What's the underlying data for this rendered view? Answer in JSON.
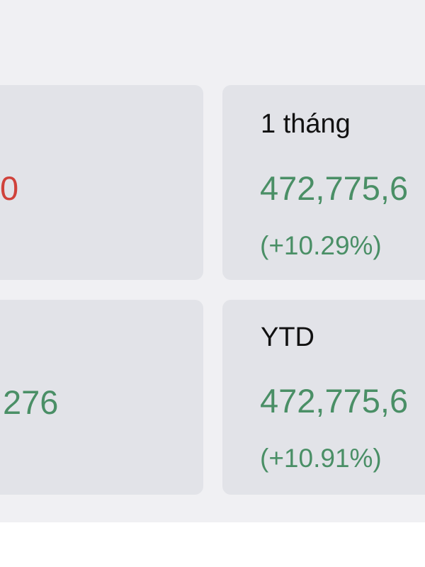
{
  "colors": {
    "positive": "#4a8f66",
    "negative": "#d0423b",
    "card": "#e2e3e8"
  },
  "cards": [
    {
      "label": "",
      "value": "0",
      "change": "",
      "trend": "negative"
    },
    {
      "label": "1 tháng",
      "value": "472,775,6",
      "change": "(+10.29%)",
      "trend": "positive"
    },
    {
      "label": "",
      "value": "276",
      "change": "",
      "trend": "positive"
    },
    {
      "label": "YTD",
      "value": "472,775,6",
      "change": "(+10.91%)",
      "trend": "positive"
    }
  ]
}
